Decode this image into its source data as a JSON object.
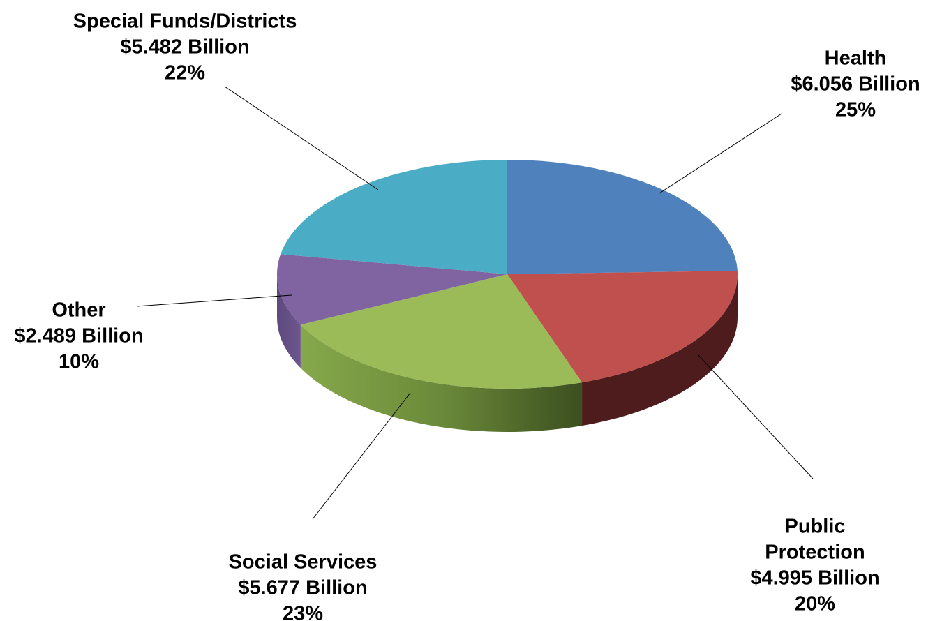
{
  "chart_data": {
    "type": "pie",
    "title": "",
    "style": "3d-tilted",
    "units": "Billion",
    "slices": [
      {
        "name": "Health",
        "value": 6.056,
        "value_label": "$6.056 Billion",
        "percent": 25,
        "percent_label": "25%",
        "color": "#4F81BD",
        "side_color": "#2c4a70"
      },
      {
        "name": "Public Protection",
        "value": 4.995,
        "value_label": "$4.995 Billion",
        "percent": 20,
        "percent_label": "20%",
        "color": "#C0504D",
        "side_color": "#4e1c1d"
      },
      {
        "name": "Social Services",
        "value": 5.677,
        "value_label": "$5.677 Billion",
        "percent": 23,
        "percent_label": "23%",
        "color": "#9BBB59",
        "side_color": "#6f8d3c"
      },
      {
        "name": "Other",
        "value": 2.489,
        "value_label": "$2.489 Billion",
        "percent": 10,
        "percent_label": "10%",
        "color": "#8064A2",
        "side_color": "#5e4a7e"
      },
      {
        "name": "Special Funds/Districts",
        "value": 5.482,
        "value_label": "$5.482 Billion",
        "percent": 22,
        "percent_label": "22%",
        "color": "#4BACC6",
        "side_color": "#2e7d92"
      }
    ]
  }
}
